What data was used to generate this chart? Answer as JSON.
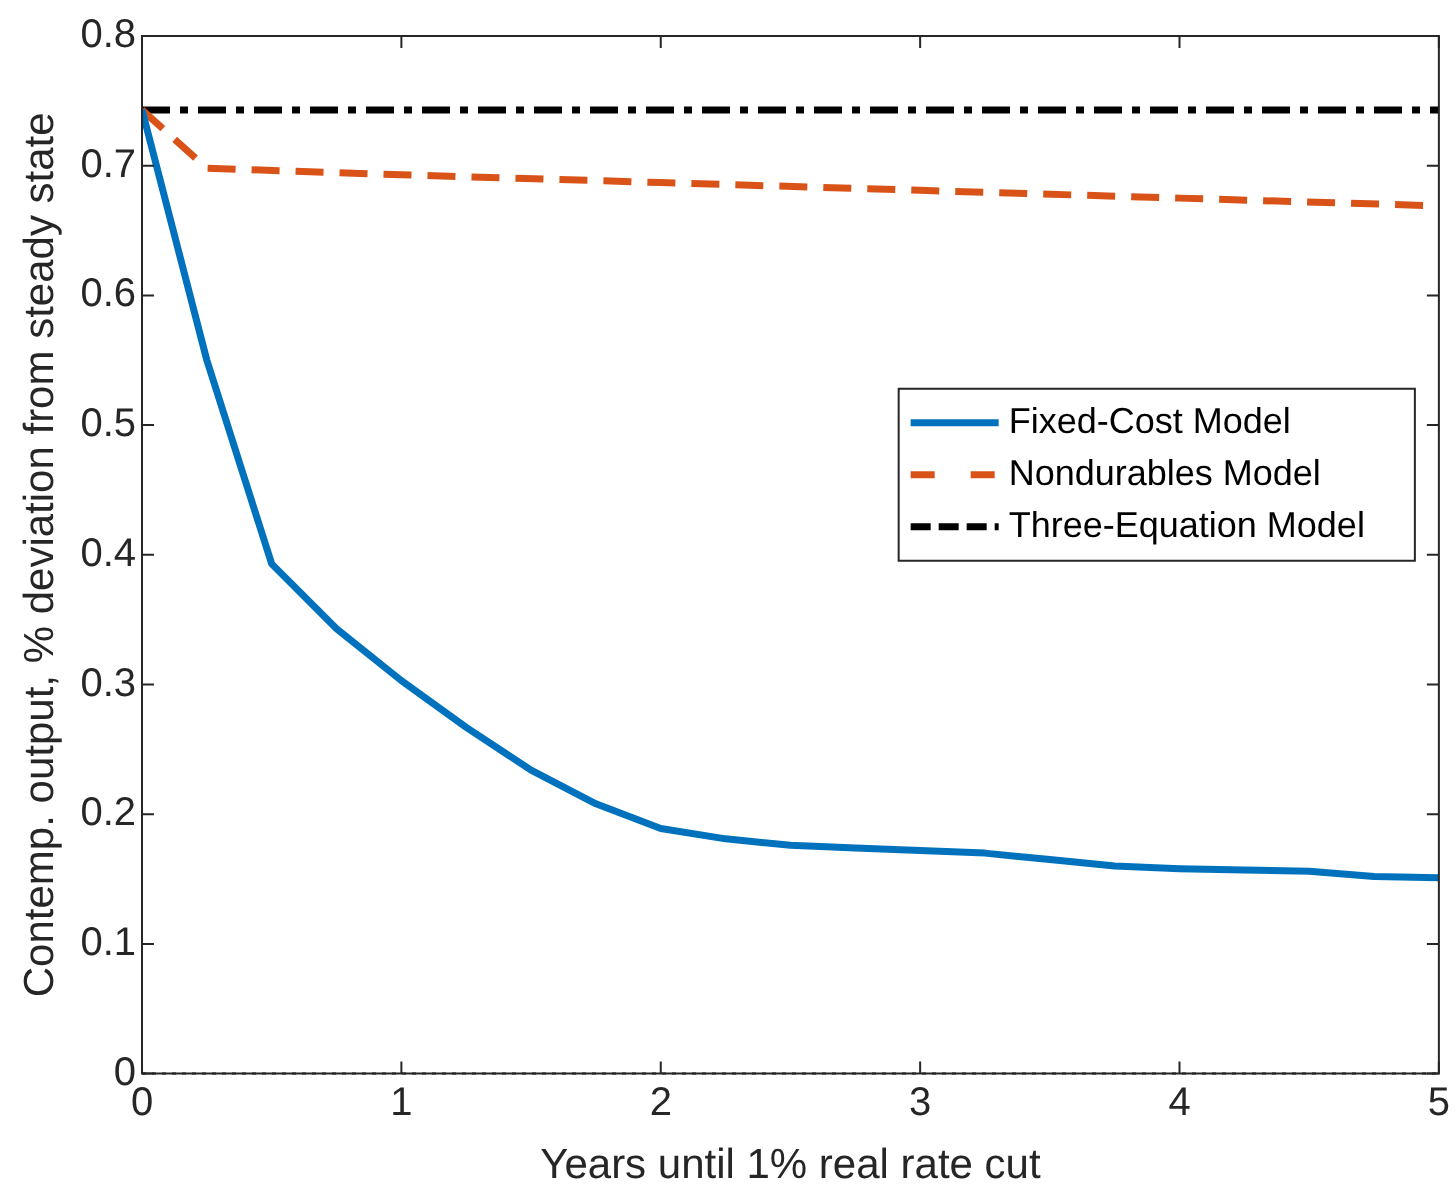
{
  "chart_data": {
    "type": "line",
    "xlabel": "Years until 1% real rate cut",
    "ylabel": "Contemp. output, % deviation from steady state",
    "series": [
      {
        "name": "Fixed-Cost Model",
        "color": "#0072bd",
        "line_style": "solid",
        "x": [
          0,
          0.25,
          0.5,
          0.75,
          1,
          1.25,
          1.5,
          1.75,
          2,
          2.25,
          2.5,
          2.75,
          3,
          3.25,
          3.5,
          3.75,
          4,
          4.25,
          4.5,
          4.75,
          5
        ],
        "values": [
          0.743,
          0.55,
          0.393,
          0.343,
          0.303,
          0.267,
          0.234,
          0.208,
          0.189,
          0.181,
          0.176,
          0.174,
          0.172,
          0.17,
          0.165,
          0.16,
          0.158,
          0.157,
          0.156,
          0.152,
          0.151
        ]
      },
      {
        "name": "Nondurables Model",
        "color": "#d95319",
        "line_style": "dashed",
        "x": [
          0,
          0.25,
          1,
          2,
          3,
          4,
          5
        ],
        "values": [
          0.743,
          0.698,
          0.693,
          0.687,
          0.681,
          0.675,
          0.669
        ]
      },
      {
        "name": "Three-Equation Model",
        "color": "#000000",
        "line_style": "dashdot",
        "x": [
          0,
          5
        ],
        "values": [
          0.743,
          0.743
        ]
      }
    ],
    "ref_lines": [
      {
        "axis": "y",
        "value": 0,
        "line_style": "dotted",
        "color": "#000000"
      }
    ],
    "xlim": [
      0,
      5
    ],
    "xticks": [
      0,
      1,
      2,
      3,
      4,
      5
    ],
    "ylim": [
      0,
      0.8
    ],
    "yticks": [
      0,
      0.1,
      0.2,
      0.3,
      0.4,
      0.5,
      0.6,
      0.7,
      0.8
    ],
    "grid": false,
    "legend": "right",
    "marker": "none"
  }
}
